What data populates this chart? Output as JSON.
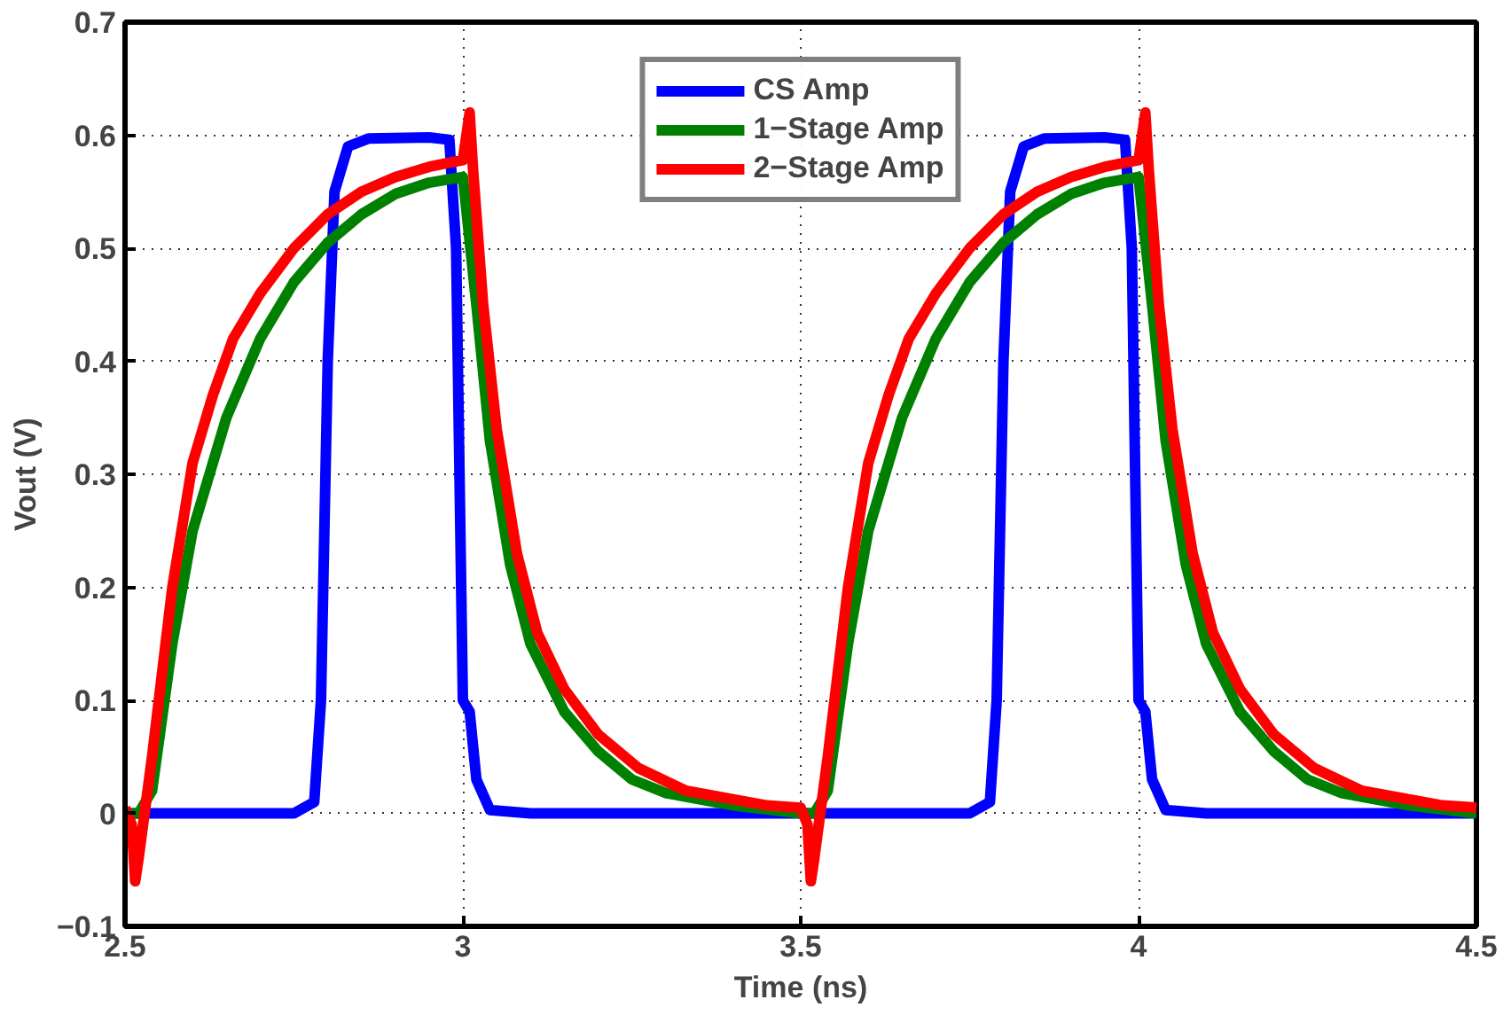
{
  "chart_data": {
    "type": "line",
    "xlabel": "Time (ns)",
    "ylabel": "Vout (V)",
    "xlim": [
      2.5,
      4.5
    ],
    "ylim": [
      -0.1,
      0.7
    ],
    "xticks": [
      2.5,
      3,
      3.5,
      4,
      4.5
    ],
    "yticks": [
      -0.1,
      0,
      0.1,
      0.2,
      0.3,
      0.4,
      0.5,
      0.6,
      0.7
    ],
    "grid": true,
    "legend": "top",
    "line_style": "solid",
    "marker": "none",
    "series": [
      {
        "name": "CS Amp",
        "color": "#0000ff",
        "x": [
          2.5,
          2.53,
          2.75,
          2.78,
          2.79,
          2.8,
          2.81,
          2.83,
          2.86,
          2.95,
          2.98,
          2.99,
          3.0,
          3.01,
          3.02,
          3.04,
          3.1,
          3.5,
          3.53,
          3.75,
          3.78,
          3.79,
          3.8,
          3.81,
          3.83,
          3.86,
          3.95,
          3.98,
          3.99,
          4.0,
          4.01,
          4.02,
          4.04,
          4.1,
          4.5
        ],
        "values": [
          0,
          0,
          0,
          0.01,
          0.1,
          0.4,
          0.55,
          0.59,
          0.597,
          0.598,
          0.596,
          0.5,
          0.1,
          0.09,
          0.03,
          0.003,
          0,
          0,
          0,
          0,
          0.01,
          0.1,
          0.4,
          0.55,
          0.59,
          0.597,
          0.598,
          0.596,
          0.5,
          0.1,
          0.09,
          0.03,
          0.003,
          0,
          0
        ]
      },
      {
        "name": "1−Stage Amp",
        "color": "#008000",
        "x": [
          2.5,
          2.52,
          2.54,
          2.57,
          2.6,
          2.65,
          2.7,
          2.75,
          2.8,
          2.85,
          2.9,
          2.95,
          3.0,
          3.02,
          3.04,
          3.07,
          3.1,
          3.15,
          3.2,
          3.25,
          3.3,
          3.4,
          3.5,
          3.52,
          3.54,
          3.57,
          3.6,
          3.65,
          3.7,
          3.75,
          3.8,
          3.85,
          3.9,
          3.95,
          4.0,
          4.02,
          4.04,
          4.07,
          4.1,
          4.15,
          4.2,
          4.25,
          4.3,
          4.4,
          4.5
        ],
        "values": [
          0,
          0,
          0.02,
          0.15,
          0.25,
          0.35,
          0.42,
          0.47,
          0.505,
          0.53,
          0.548,
          0.558,
          0.563,
          0.45,
          0.33,
          0.22,
          0.15,
          0.09,
          0.055,
          0.03,
          0.018,
          0.007,
          0,
          0,
          0.02,
          0.15,
          0.25,
          0.35,
          0.42,
          0.47,
          0.505,
          0.53,
          0.548,
          0.558,
          0.563,
          0.45,
          0.33,
          0.22,
          0.15,
          0.09,
          0.055,
          0.03,
          0.018,
          0.007,
          0
        ]
      },
      {
        "name": "2−Stage Amp",
        "color": "#ff0000",
        "x": [
          2.5,
          2.51,
          2.515,
          2.52,
          2.54,
          2.57,
          2.6,
          2.63,
          2.66,
          2.7,
          2.75,
          2.8,
          2.85,
          2.9,
          2.95,
          3.0,
          3.01,
          3.015,
          3.03,
          3.05,
          3.08,
          3.11,
          3.15,
          3.2,
          3.26,
          3.33,
          3.45,
          3.5,
          3.51,
          3.515,
          3.52,
          3.54,
          3.57,
          3.6,
          3.63,
          3.66,
          3.7,
          3.75,
          3.8,
          3.85,
          3.9,
          3.95,
          4.0,
          4.01,
          4.015,
          4.03,
          4.05,
          4.08,
          4.11,
          4.15,
          4.2,
          4.26,
          4.33,
          4.45,
          4.5
        ],
        "values": [
          0.005,
          -0.01,
          -0.06,
          -0.04,
          0.05,
          0.2,
          0.31,
          0.37,
          0.42,
          0.46,
          0.5,
          0.53,
          0.55,
          0.563,
          0.572,
          0.578,
          0.62,
          0.57,
          0.45,
          0.34,
          0.23,
          0.16,
          0.11,
          0.07,
          0.04,
          0.02,
          0.007,
          0.005,
          -0.01,
          -0.06,
          -0.04,
          0.05,
          0.2,
          0.31,
          0.37,
          0.42,
          0.46,
          0.5,
          0.53,
          0.55,
          0.563,
          0.572,
          0.578,
          0.62,
          0.57,
          0.45,
          0.34,
          0.23,
          0.16,
          0.11,
          0.07,
          0.04,
          0.02,
          0.007,
          0.005
        ]
      }
    ]
  }
}
